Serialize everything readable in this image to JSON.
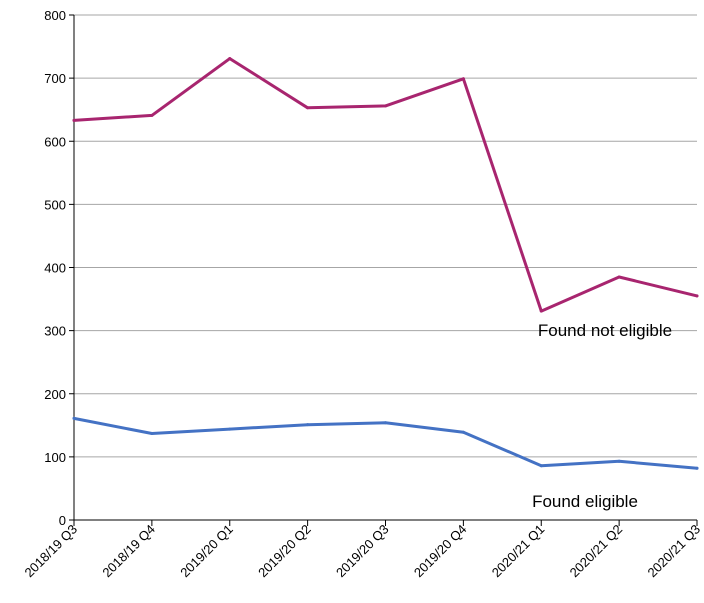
{
  "chart_data": {
    "type": "line",
    "title": "",
    "xlabel": "",
    "ylabel": "",
    "categories": [
      "2018/19 Q3",
      "2018/19 Q4",
      "2019/20 Q1",
      "2019/20 Q2",
      "2019/20 Q3",
      "2019/20 Q4",
      "2020/21 Q1",
      "2020/21 Q2",
      "2020/21 Q3"
    ],
    "ylim": [
      0,
      800
    ],
    "yticks": [
      0,
      100,
      200,
      300,
      400,
      500,
      600,
      700,
      800
    ],
    "grid": true,
    "legend": "none (inline series labels)",
    "series": [
      {
        "name": "Found not eligible",
        "color": "#a8256f",
        "values": [
          633,
          641,
          731,
          653,
          656,
          699,
          331,
          385,
          355
        ]
      },
      {
        "name": "Found eligible",
        "color": "#4472c4",
        "values": [
          161,
          137,
          144,
          151,
          154,
          139,
          86,
          93,
          82
        ]
      }
    ]
  }
}
